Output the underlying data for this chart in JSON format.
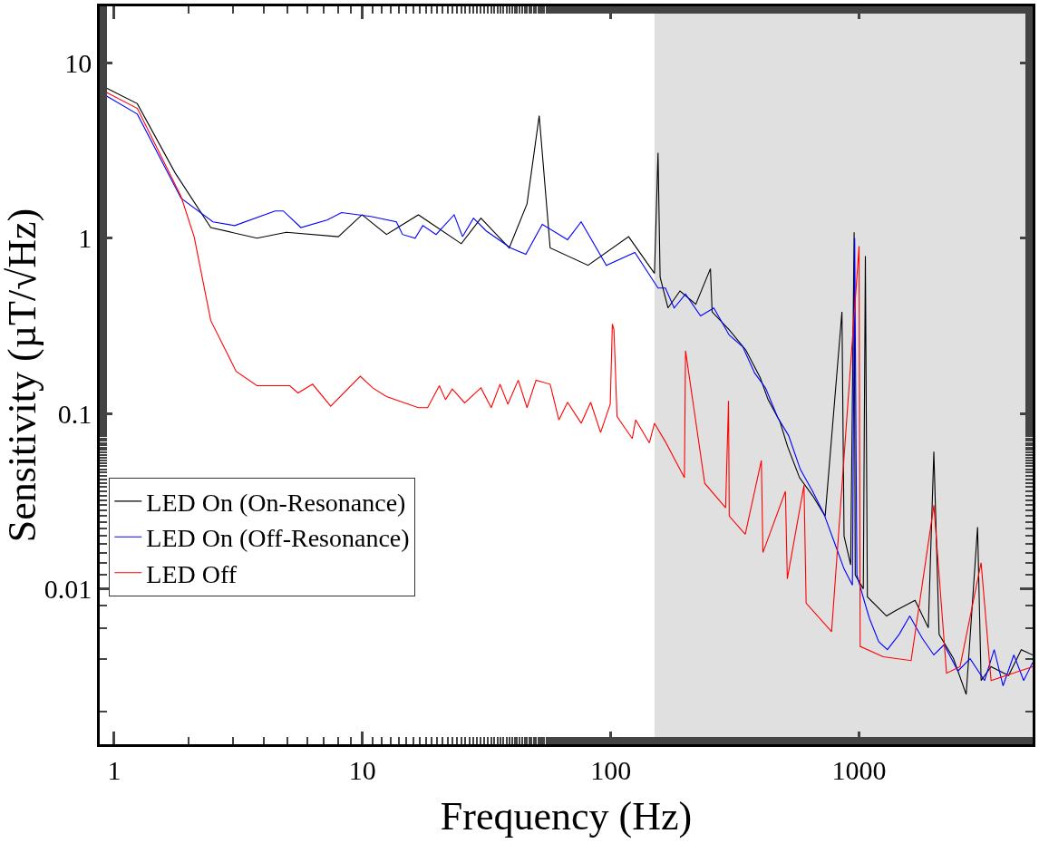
{
  "chart_data": {
    "type": "line",
    "xlabel": "Frequency (Hz)",
    "ylabel": "Sensitivity (µT/√Hz)",
    "log": "xy",
    "xlim": [
      0.875,
      5000
    ],
    "ylim": [
      0.0013,
      21
    ],
    "xticks": [
      1,
      10,
      100,
      1000
    ],
    "yticks": [
      0.01,
      0.1,
      1,
      10
    ],
    "grid": false,
    "legend": "bottom left",
    "line_style": "solid",
    "marker": "none",
    "bands": [
      {
        "axis": "x",
        "from": 150,
        "to": 5000,
        "color": "#e0e0e0"
      }
    ],
    "series": [
      {
        "name": "LED On (On-Resonance)",
        "color": "#000000",
        "x": [
          0.91,
          1.24,
          1.76,
          2.45,
          3.76,
          4.94,
          8.0,
          9.96,
          12.5,
          16.8,
          25,
          30,
          39,
          46,
          51.5,
          57,
          81,
          118,
          150,
          155,
          158,
          170,
          190,
          220,
          252,
          256,
          300,
          350,
          400,
          430,
          480,
          515,
          576,
          650,
          730,
          853,
          870,
          925,
          955,
          965,
          1040,
          1060,
          1080,
          1290,
          1400,
          1680,
          1900,
          2000,
          2100,
          2400,
          2700,
          3000,
          3100,
          3400,
          4000,
          4500,
          5000
        ],
        "values": [
          7.3,
          5.85,
          2.36,
          1.15,
          1.0,
          1.08,
          1.02,
          1.36,
          1.05,
          1.36,
          0.93,
          1.3,
          0.88,
          1.57,
          5.0,
          0.88,
          0.7,
          1.02,
          0.63,
          3.07,
          0.6,
          0.4,
          0.5,
          0.42,
          0.67,
          0.38,
          0.3,
          0.23,
          0.16,
          0.12,
          0.09,
          0.065,
          0.043,
          0.034,
          0.026,
          0.38,
          0.02,
          0.0137,
          1.08,
          0.012,
          0.01,
          0.79,
          0.009,
          0.007,
          0.0075,
          0.0086,
          0.006,
          0.0606,
          0.0055,
          0.004,
          0.0025,
          0.0225,
          0.003,
          0.0036,
          0.0032,
          0.0045,
          0.0042
        ]
      },
      {
        "name": "LED On (Off-Resonance)",
        "color": "#0000ff",
        "x": [
          0.91,
          1.24,
          1.86,
          2.5,
          3.06,
          4.45,
          4.8,
          5.65,
          7.2,
          8.24,
          10.8,
          13.7,
          14.5,
          16.3,
          17.5,
          19.8,
          23.4,
          25.3,
          28,
          31.5,
          39.5,
          45.5,
          53,
          67,
          76,
          96,
          125,
          155,
          166,
          180,
          200,
          230,
          260,
          300,
          340,
          380,
          420,
          470,
          520,
          580,
          650,
          720,
          800,
          870,
          940,
          960,
          980,
          1050,
          1100,
          1200,
          1300,
          1450,
          1600,
          1700,
          1800,
          2000,
          2200,
          2500,
          2800,
          3200,
          3500,
          3800,
          4200,
          4600,
          5000
        ],
        "values": [
          6.6,
          5.1,
          1.69,
          1.24,
          1.18,
          1.43,
          1.43,
          1.15,
          1.27,
          1.4,
          1.33,
          1.24,
          1.05,
          1.0,
          1.18,
          1.05,
          1.36,
          1.02,
          1.3,
          1.1,
          0.88,
          0.81,
          1.2,
          0.98,
          1.24,
          0.7,
          0.83,
          0.52,
          0.52,
          0.4,
          0.48,
          0.36,
          0.4,
          0.28,
          0.24,
          0.17,
          0.14,
          0.095,
          0.075,
          0.048,
          0.036,
          0.027,
          0.018,
          0.013,
          0.0105,
          1.0,
          0.012,
          0.0085,
          0.0068,
          0.005,
          0.0045,
          0.0055,
          0.007,
          0.006,
          0.0052,
          0.0042,
          0.0048,
          0.0034,
          0.004,
          0.003,
          0.0045,
          0.0028,
          0.0042,
          0.003,
          0.0038
        ]
      },
      {
        "name": "LED Off",
        "color": "#ff0000",
        "x": [
          0.91,
          1.24,
          1.86,
          2.1,
          2.45,
          3.1,
          3.76,
          5.1,
          5.5,
          6.3,
          7.45,
          9.8,
          11,
          12.5,
          16.8,
          18.3,
          20.4,
          21.6,
          23,
          25.8,
          30,
          33,
          35.8,
          38.5,
          42.4,
          46,
          50,
          57,
          61.8,
          67,
          76,
          83,
          91,
          99.5,
          101.5,
          103,
          106,
          122,
          126,
          143,
          150,
          166,
          198,
          200,
          239,
          290,
          298,
          300,
          348,
          404,
          410,
          505,
          514,
          600,
          612,
          775,
          1000,
          1010,
          1250,
          1620,
          2000,
          2250,
          2550,
          3100,
          3400,
          5000
        ],
        "values": [
          6.9,
          5.5,
          1.73,
          1.02,
          0.339,
          0.174,
          0.144,
          0.144,
          0.131,
          0.147,
          0.11,
          0.163,
          0.14,
          0.125,
          0.108,
          0.108,
          0.144,
          0.12,
          0.138,
          0.115,
          0.14,
          0.108,
          0.147,
          0.113,
          0.155,
          0.108,
          0.155,
          0.147,
          0.092,
          0.116,
          0.088,
          0.116,
          0.078,
          0.113,
          0.324,
          0.3,
          0.096,
          0.072,
          0.092,
          0.068,
          0.088,
          0.069,
          0.043,
          0.228,
          0.04,
          0.029,
          0.118,
          0.026,
          0.0205,
          0.054,
          0.0161,
          0.036,
          0.0114,
          0.039,
          0.0083,
          0.0057,
          0.9,
          0.0047,
          0.0041,
          0.0039,
          0.03,
          0.0033,
          0.0036,
          0.0141,
          0.003,
          0.0036
        ]
      }
    ]
  }
}
